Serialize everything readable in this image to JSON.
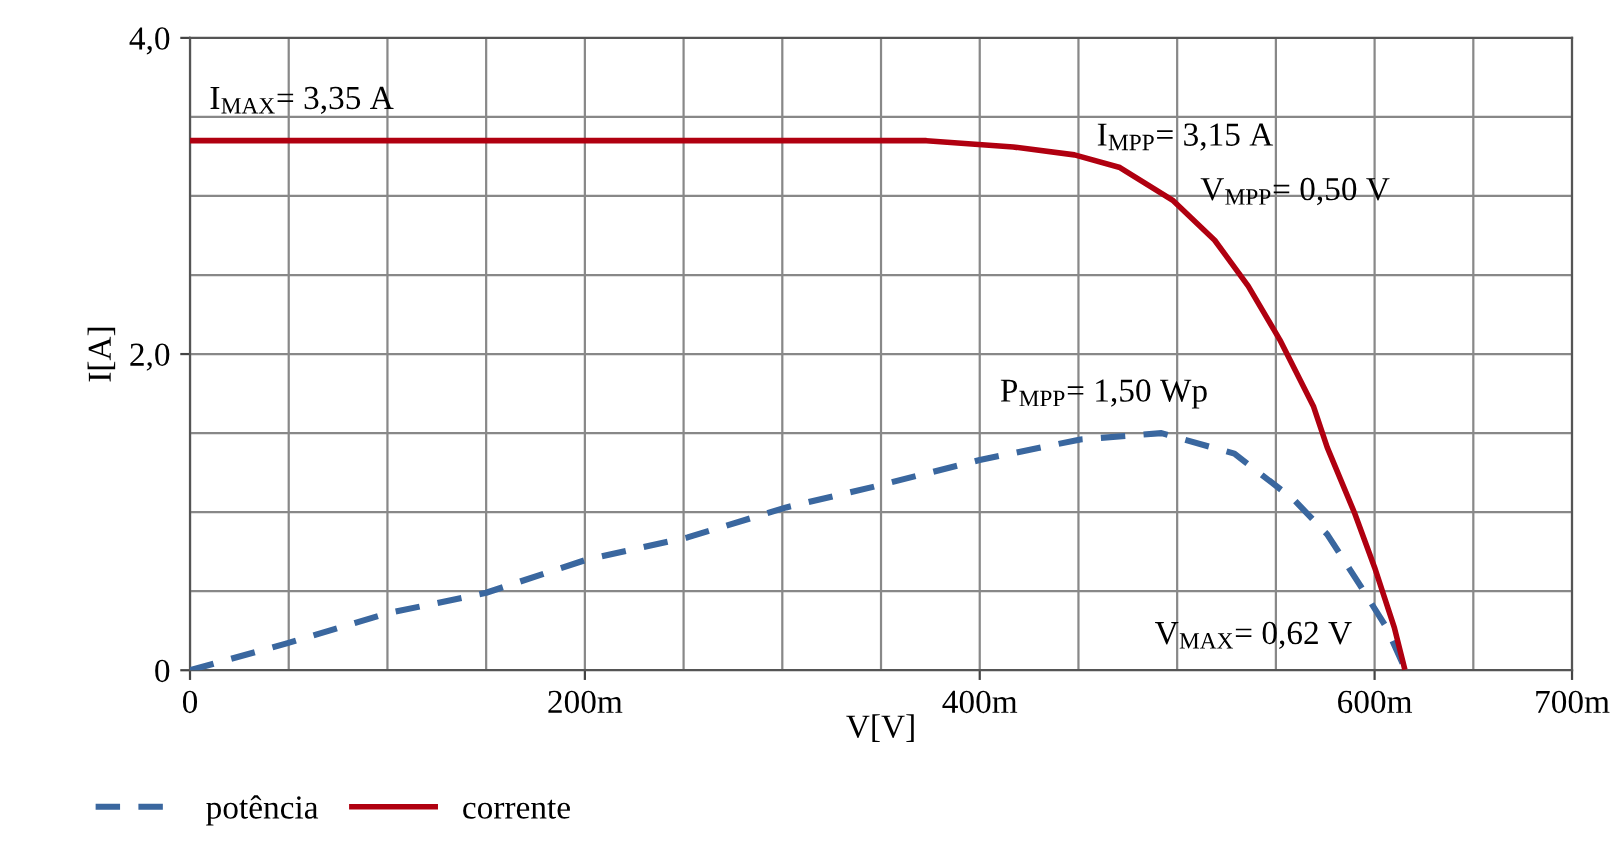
{
  "chart_data": {
    "type": "line",
    "xlabel": "V[V]",
    "ylabel": "I[A]",
    "xlim": [
      0,
      700
    ],
    "ylim": [
      0,
      4.0
    ],
    "xticks": [
      0,
      {
        "value": 50,
        "label": null
      },
      {
        "value": 100,
        "label": null
      },
      {
        "value": 150,
        "label": null
      },
      {
        "value": 200,
        "label": "200m"
      },
      {
        "value": 250,
        "label": null
      },
      {
        "value": 300,
        "label": null
      },
      {
        "value": 350,
        "label": null
      },
      {
        "value": 400,
        "label": "400m"
      },
      {
        "value": 450,
        "label": null
      },
      {
        "value": 500,
        "label": null
      },
      {
        "value": 550,
        "label": null
      },
      {
        "value": 600,
        "label": "600m"
      },
      {
        "value": 650,
        "label": null
      },
      {
        "value": 700,
        "label": "700m"
      }
    ],
    "yticks": [
      0,
      {
        "value": 0.5,
        "label": null
      },
      {
        "value": 1.0,
        "label": null
      },
      {
        "value": 1.5,
        "label": null
      },
      {
        "value": 2.0,
        "label": "2,0"
      },
      {
        "value": 2.5,
        "label": null
      },
      {
        "value": 3.0,
        "label": null
      },
      {
        "value": 3.5,
        "label": null
      },
      {
        "value": 4.0,
        "label": "4,0"
      }
    ],
    "grid": true,
    "legend": "bottom left",
    "marker": "none",
    "series": [
      {
        "name": "potência",
        "color": "#3a679f",
        "line_style": "dashed",
        "x": [
          0,
          49,
          100,
          150,
          201,
          252,
          302,
          346,
          400,
          451,
          492,
          529,
          559,
          576,
          593,
          606,
          615
        ],
        "values": [
          0,
          0.17,
          0.36,
          0.49,
          0.7,
          0.84,
          1.03,
          1.16,
          1.33,
          1.46,
          1.5,
          1.37,
          1.08,
          0.86,
          0.53,
          0.27,
          0.02
        ]
      },
      {
        "name": "corrente",
        "color": "#b00010",
        "line_style": "solid",
        "x": [
          0,
          373,
          417,
          448,
          471,
          498,
          519,
          536,
          552,
          569,
          576,
          590,
          600,
          610,
          615
        ],
        "values": [
          3.35,
          3.35,
          3.31,
          3.26,
          3.18,
          2.97,
          2.72,
          2.43,
          2.09,
          1.67,
          1.41,
          0.99,
          0.65,
          0.27,
          0.02
        ]
      }
    ],
    "annotations": [
      "I$_{MAX}$= 3,35 A",
      "I$_{MPP}$= 3,15 A",
      "V$_{MPP}$= 0,50 V",
      "P$_{MPP}$= 1,50 Wp",
      "V$_{MAX}$= 0,62 V"
    ]
  }
}
